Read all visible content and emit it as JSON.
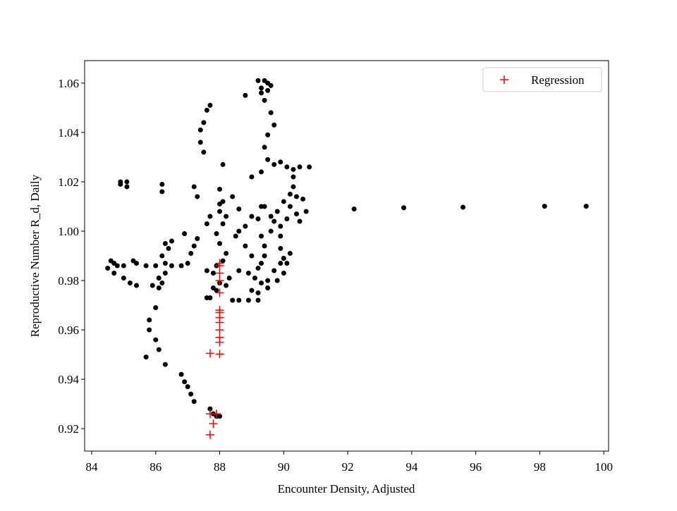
{
  "chart_data": {
    "type": "scatter",
    "xlabel": "Encounter Density, Adjusted",
    "ylabel": "Reproductive Number R_d, Daily",
    "xlim": [
      83.78,
      100.15
    ],
    "ylim": [
      0.9109,
      1.0691
    ],
    "xticks": [
      84,
      86,
      88,
      90,
      92,
      94,
      96,
      98,
      100
    ],
    "yticks": [
      0.92,
      0.94,
      0.96,
      0.98,
      {
        "value": 1,
        "label": "1.00"
      },
      1.02,
      1.04,
      1.06
    ],
    "legend": "upper right",
    "series": [
      {
        "color": "#000000",
        "marker": "o",
        "x": [
          92.2,
          93.75,
          95.6,
          98.15,
          99.45,
          89.2,
          89.4,
          89.5,
          89.6,
          89.3,
          89.5,
          89.3,
          88.8,
          89.4,
          89.6,
          89.7,
          89.5,
          89.4,
          89.5,
          89.0,
          89.3,
          87.6,
          87.7,
          87.5,
          87.4,
          87.4,
          87.5,
          88.1,
          89.7,
          89.9,
          90.1,
          90.3,
          90.5,
          90.8,
          90.3,
          90.3,
          90.4,
          90.6,
          90.2,
          90.4,
          90.5,
          90.7,
          90.1,
          89.9,
          89.9,
          89.9,
          90.0,
          90.1,
          90.0,
          89.8,
          89.5,
          89.2,
          89.2,
          88.9,
          88.6,
          88.4,
          89.0,
          89.3,
          89.5,
          89.7,
          89.9,
          90.0,
          90.2,
          89.6,
          89.7,
          89.8,
          90.0,
          90.2,
          89.6,
          89.4,
          89.0,
          88.8,
          88.6,
          88.5,
          88.8,
          89.0,
          89.3,
          89.4,
          89.4,
          89.3,
          89.2,
          89.3,
          89.2,
          89.1,
          88.9,
          88.6,
          88.3,
          88.2,
          87.7,
          87.9,
          88.0,
          87.8,
          87.9,
          88.1,
          88.2,
          88.0,
          87.9,
          88.1,
          88.0,
          88.1,
          88.0,
          88.4,
          88.2,
          88.6,
          88.0,
          87.7,
          87.6,
          87.3,
          87.2,
          87.1,
          87.0,
          86.8,
          86.5,
          86.3,
          86.0,
          85.7,
          85.4,
          87.2,
          87.3,
          86.9,
          86.3,
          86.4,
          86.5,
          86.2,
          86.3,
          86.2,
          86.1,
          85.9,
          86.1,
          84.6,
          84.7,
          84.5,
          84.7,
          85.0,
          85.2,
          85.4,
          85.3,
          85.0,
          84.8,
          84.9,
          84.9,
          85.1,
          85.1,
          86.2,
          86.2,
          87.6,
          87.8,
          87.6,
          88.0,
          87.8,
          87.7,
          87.9,
          86.0,
          85.8,
          85.8,
          86.0,
          86.1,
          85.7,
          86.3,
          86.8,
          86.9,
          87.0,
          87.1,
          87.2
        ],
        "values": [
          1.009,
          1.0095,
          1.0097,
          1.0101,
          1.0101,
          1.061,
          1.061,
          1.06,
          1.059,
          1.058,
          1.057,
          1.056,
          1.055,
          1.053,
          1.048,
          1.043,
          1.039,
          1.034,
          1.029,
          1.022,
          1.024,
          1.049,
          1.051,
          1.044,
          1.041,
          1.036,
          1.032,
          1.027,
          1.027,
          1.028,
          1.026,
          1.025,
          1.026,
          1.026,
          1.022,
          1.018,
          1.014,
          1.013,
          1.01,
          1.007,
          1.004,
          1.008,
          1.005,
          1.002,
          0.998,
          0.993,
          0.989,
          0.987,
          0.983,
          0.98,
          0.977,
          0.975,
          0.972,
          0.972,
          0.972,
          0.972,
          0.976,
          0.979,
          0.98,
          0.984,
          0.987,
          0.989,
          0.991,
          1.0,
          1.004,
          1.008,
          1.012,
          1.015,
          1.006,
          1.01,
          1.006,
          1.002,
          1.0,
          0.998,
          0.994,
          0.99,
          0.987,
          0.99,
          0.994,
          0.998,
          1.005,
          1.01,
          0.985,
          0.981,
          0.983,
          0.984,
          0.981,
          0.978,
          0.973,
          0.976,
          0.979,
          0.983,
          0.986,
          0.988,
          0.991,
          0.995,
          0.999,
          1.003,
          1.008,
          1.012,
          1.017,
          1.014,
          1.006,
          1.009,
          1.011,
          1.006,
          1.003,
          0.997,
          0.994,
          0.991,
          0.987,
          0.986,
          0.986,
          0.987,
          0.986,
          0.986,
          0.987,
          1.018,
          1.014,
          0.999,
          0.995,
          0.993,
          0.996,
          0.99,
          0.983,
          0.979,
          0.977,
          0.978,
          0.981,
          0.988,
          0.987,
          0.985,
          0.983,
          0.981,
          0.979,
          0.978,
          0.988,
          0.986,
          0.986,
          1.02,
          1.019,
          1.02,
          1.018,
          1.019,
          1.016,
          0.984,
          0.977,
          0.973,
          0.925,
          0.926,
          0.928,
          0.925,
          0.969,
          0.964,
          0.96,
          0.956,
          0.952,
          0.949,
          0.946,
          0.942,
          0.939,
          0.937,
          0.934,
          0.931
        ]
      },
      {
        "name": "Regression",
        "color": "#ff0000",
        "marker": "+",
        "x": [
          87.7,
          87.7,
          87.8,
          87.9,
          87.7,
          88.0,
          88.0,
          88.0,
          88.0,
          88.0,
          88.0,
          88.0,
          88.0,
          88.0,
          88.0,
          88.0,
          88.0,
          88.0
        ],
        "values": [
          0.9175,
          0.926,
          0.922,
          0.926,
          0.9505,
          0.9502,
          0.955,
          0.957,
          0.96,
          0.963,
          0.965,
          0.967,
          0.968,
          0.975,
          0.98,
          0.983,
          0.986,
          0.987
        ]
      }
    ]
  }
}
